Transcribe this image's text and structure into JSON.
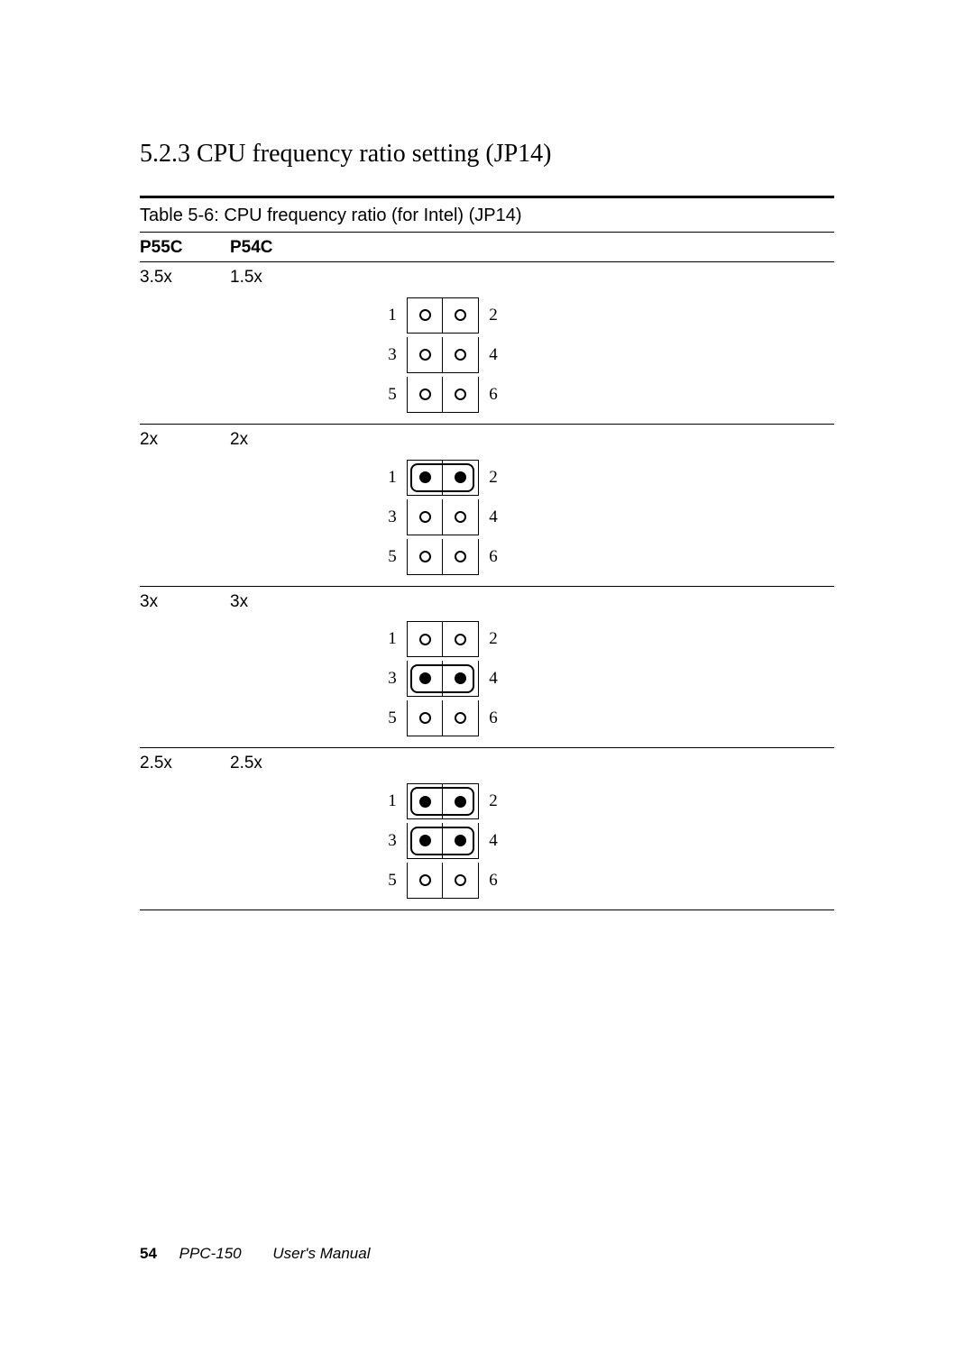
{
  "section_title": "5.2.3 CPU frequency ratio setting (JP14)",
  "table_title": "Table 5-6: CPU frequency ratio (for Intel) (JP14)",
  "headers": {
    "col1": "P55C",
    "col2": "P54C"
  },
  "rows": [
    {
      "p55c": "3.5x",
      "p54c": "1.5x",
      "pins_filled": [
        false,
        false,
        false,
        false,
        false,
        false
      ],
      "caps": []
    },
    {
      "p55c": "2x",
      "p54c": "2x",
      "pins_filled": [
        true,
        true,
        false,
        false,
        false,
        false
      ],
      "caps": [
        [
          1,
          2
        ]
      ]
    },
    {
      "p55c": "3x",
      "p54c": "3x",
      "pins_filled": [
        false,
        false,
        true,
        true,
        false,
        false
      ],
      "caps": [
        [
          3,
          4
        ]
      ]
    },
    {
      "p55c": "2.5x",
      "p54c": "2.5x",
      "pins_filled": [
        true,
        true,
        true,
        true,
        false,
        false
      ],
      "caps": [
        [
          1,
          2
        ],
        [
          3,
          4
        ]
      ]
    }
  ],
  "pin_labels": {
    "1": "1",
    "2": "2",
    "3": "3",
    "4": "4",
    "5": "5",
    "6": "6"
  },
  "footer": {
    "page": "54",
    "model": "PPC-150",
    "manual": "User's Manual"
  },
  "colors": {
    "text": "#000000",
    "background": "#ffffff"
  }
}
